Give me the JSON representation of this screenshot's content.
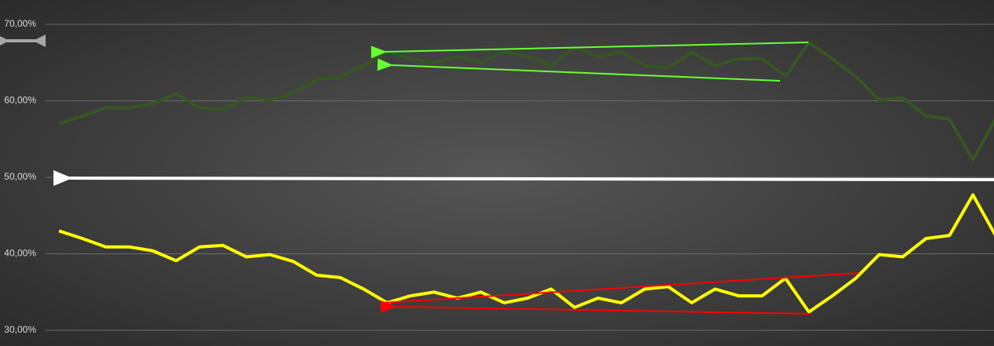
{
  "chart_data": {
    "type": "line",
    "categories": [
      null,
      null,
      null,
      null,
      null,
      null,
      null,
      null,
      null,
      null,
      null,
      null,
      null,
      null,
      null,
      null,
      null,
      null,
      null,
      null,
      null,
      null,
      null,
      null,
      null,
      null,
      null,
      null,
      null,
      null,
      null,
      null,
      null,
      null,
      null,
      null,
      null,
      null,
      null,
      null,
      null
    ],
    "series": [
      {
        "color": "#375623",
        "values": [
          57,
          58,
          59.1,
          59.1,
          59.6,
          60.9,
          59.1,
          58.9,
          60.4,
          60.1,
          61,
          62.8,
          63.1,
          64.6,
          66.4,
          65.5,
          65,
          65.8,
          65,
          66.4,
          65.8,
          64.6,
          67,
          65.8,
          66.4,
          64.6,
          64.3,
          66.4,
          64.6,
          65.5,
          65.5,
          63.2,
          67.6,
          65.5,
          63.2,
          60.1,
          60.4,
          58,
          57.6,
          52.3,
          57.8
        ]
      },
      {
        "color": "#ffff00",
        "values": [
          43,
          42,
          40.9,
          40.9,
          40.4,
          39.1,
          40.9,
          41.1,
          39.6,
          39.9,
          39,
          37.2,
          36.9,
          35.4,
          33.6,
          34.5,
          35,
          34.2,
          35,
          33.6,
          34.2,
          35.4,
          33,
          34.2,
          33.6,
          35.4,
          35.7,
          33.6,
          35.4,
          34.5,
          34.5,
          36.8,
          32.4,
          34.5,
          36.8,
          39.9,
          39.6,
          42,
          42.4,
          47.7,
          42.2
        ]
      }
    ],
    "ylim": [
      30,
      70
    ],
    "yticks": [
      {
        "value": 30,
        "label": "30,00%"
      },
      {
        "value": 40,
        "label": "40,00%"
      },
      {
        "value": 50,
        "label": "50,00%"
      },
      {
        "value": 60,
        "label": "60,00%"
      },
      {
        "value": 70,
        "label": "70,00%"
      }
    ],
    "grid": true
  }
}
